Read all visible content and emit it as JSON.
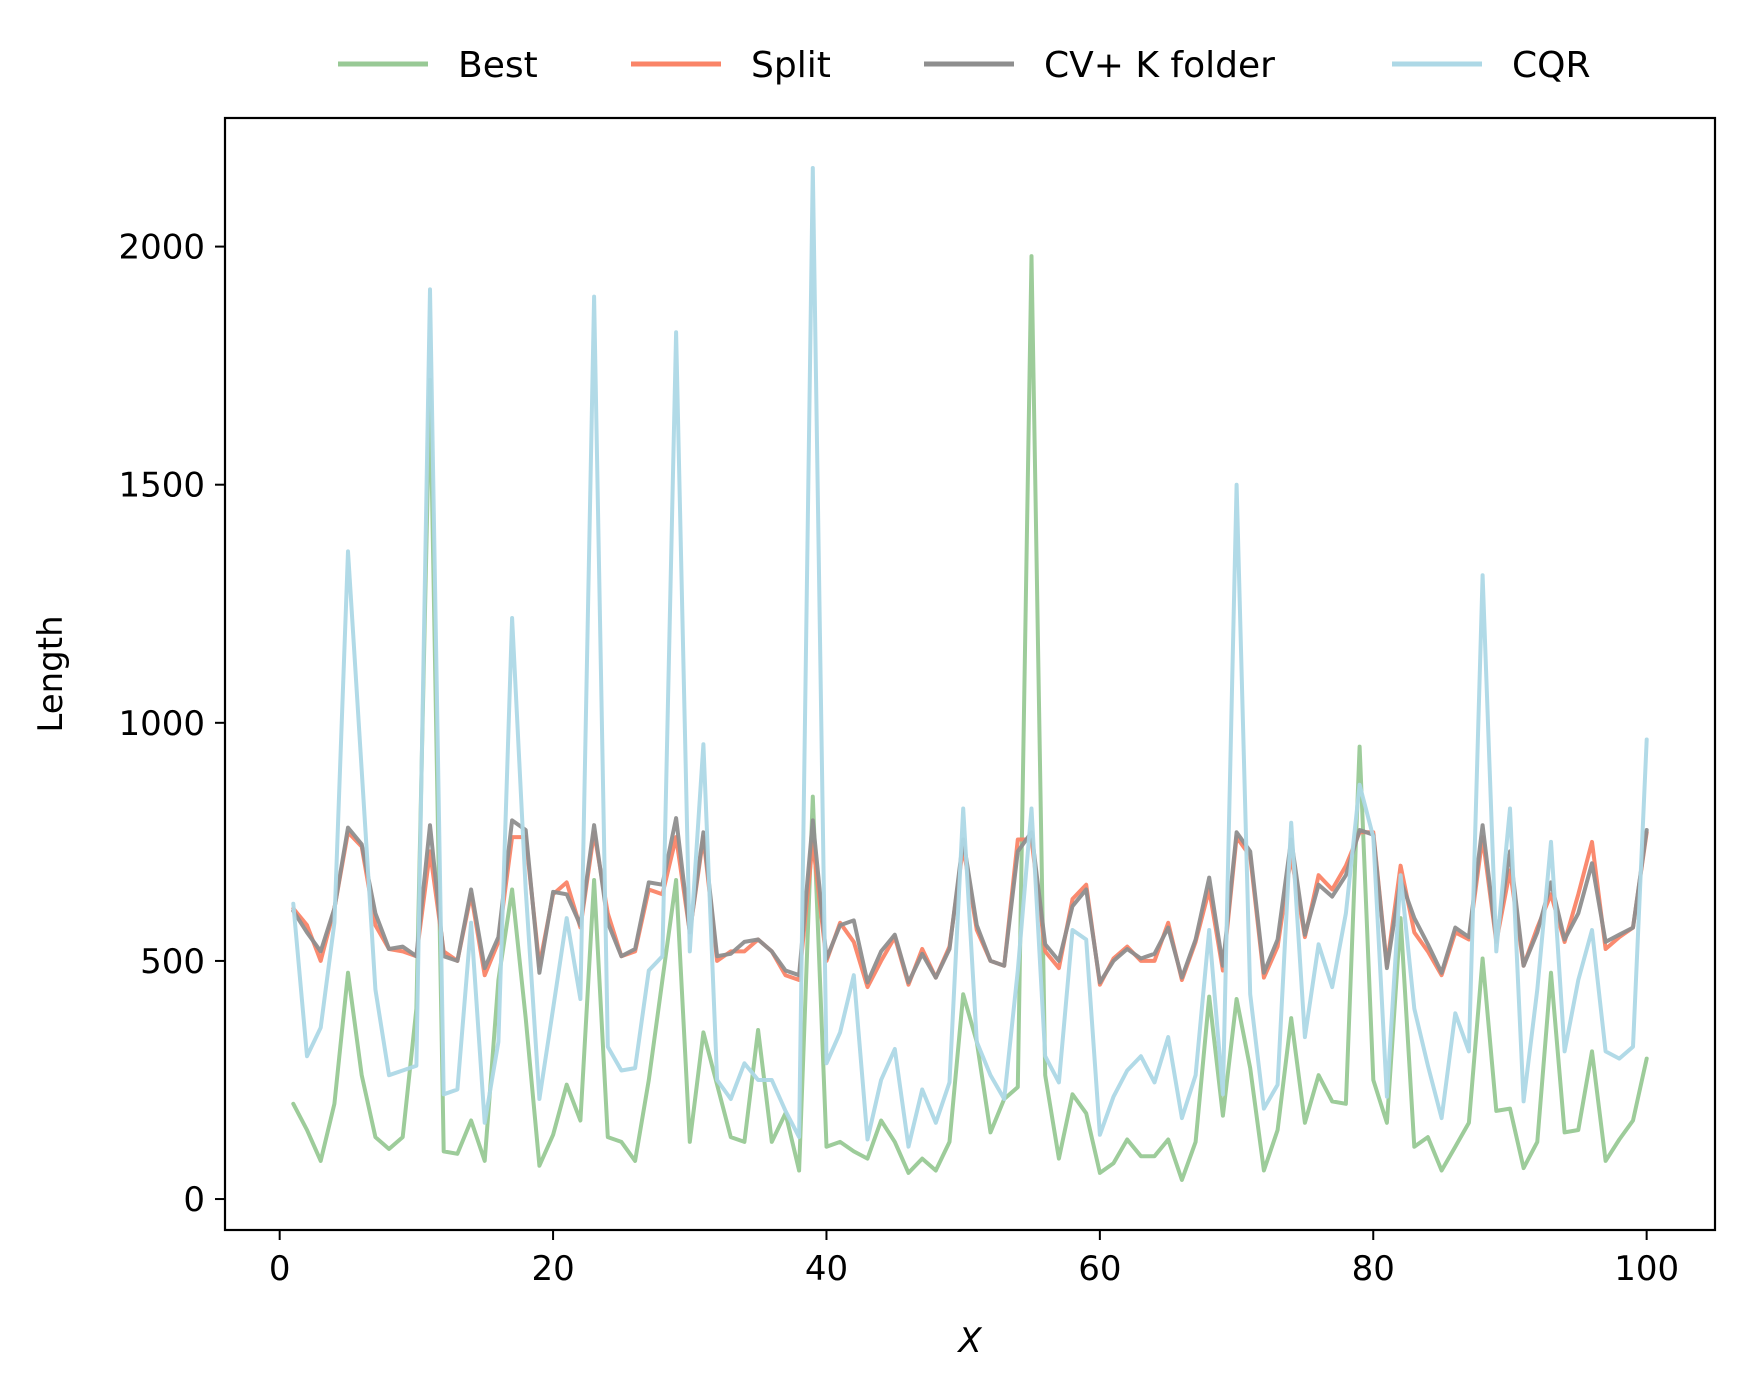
{
  "chart_data": {
    "type": "line",
    "title": "",
    "xlabel": "X",
    "ylabel": "Length",
    "xlim": [
      -4,
      105
    ],
    "ylim": [
      -65,
      2270
    ],
    "xticks": [
      0,
      20,
      40,
      60,
      80,
      100
    ],
    "yticks": [
      0,
      500,
      1000,
      1500,
      2000
    ],
    "legend_position": "top-center-outside",
    "grid": false,
    "x": [
      1,
      2,
      3,
      4,
      5,
      6,
      7,
      8,
      9,
      10,
      11,
      12,
      13,
      14,
      15,
      16,
      17,
      18,
      19,
      20,
      21,
      22,
      23,
      24,
      25,
      26,
      27,
      28,
      29,
      30,
      31,
      32,
      33,
      34,
      35,
      36,
      37,
      38,
      39,
      40,
      41,
      42,
      43,
      44,
      45,
      46,
      47,
      48,
      49,
      50,
      51,
      52,
      53,
      54,
      55,
      56,
      57,
      58,
      59,
      60,
      61,
      62,
      63,
      64,
      65,
      66,
      67,
      68,
      69,
      70,
      71,
      72,
      73,
      74,
      75,
      76,
      77,
      78,
      79,
      80,
      81,
      82,
      83,
      84,
      85,
      86,
      87,
      88,
      89,
      90,
      91,
      92,
      93,
      94,
      95,
      96,
      97,
      98,
      99,
      100
    ],
    "series": [
      {
        "name": "Best",
        "color": "#98c995",
        "values": [
          200,
          145,
          80,
          200,
          475,
          260,
          130,
          105,
          130,
          400,
          1720,
          100,
          95,
          165,
          80,
          460,
          650,
          380,
          70,
          135,
          240,
          165,
          670,
          130,
          120,
          80,
          250,
          460,
          670,
          120,
          350,
          240,
          130,
          120,
          355,
          120,
          180,
          60,
          845,
          110,
          120,
          100,
          85,
          165,
          120,
          55,
          85,
          60,
          120,
          430,
          330,
          140,
          210,
          235,
          1980,
          260,
          85,
          220,
          180,
          55,
          75,
          125,
          90,
          90,
          125,
          40,
          120,
          425,
          175,
          420,
          275,
          60,
          145,
          380,
          160,
          260,
          205,
          200,
          950,
          250,
          160,
          590,
          110,
          130,
          60,
          110,
          160,
          505,
          185,
          190,
          65,
          120,
          475,
          140,
          145,
          310,
          80,
          125,
          165,
          295
        ]
      },
      {
        "name": "Split",
        "color": "#fa8467",
        "values": [
          610,
          575,
          500,
          610,
          770,
          740,
          575,
          525,
          520,
          510,
          730,
          520,
          500,
          640,
          470,
          540,
          760,
          760,
          490,
          640,
          665,
          570,
          770,
          600,
          510,
          520,
          650,
          640,
          760,
          560,
          760,
          500,
          520,
          520,
          545,
          520,
          470,
          460,
          750,
          500,
          580,
          540,
          445,
          500,
          550,
          450,
          525,
          465,
          530,
          740,
          565,
          500,
          490,
          755,
          755,
          520,
          485,
          630,
          660,
          450,
          505,
          530,
          500,
          500,
          580,
          460,
          540,
          650,
          480,
          760,
          720,
          465,
          530,
          720,
          550,
          680,
          650,
          700,
          770,
          770,
          490,
          700,
          560,
          520,
          470,
          560,
          545,
          760,
          540,
          690,
          490,
          570,
          640,
          540,
          640,
          750,
          525,
          550,
          570,
          770
        ]
      },
      {
        "name": "CV+ K folder",
        "color": "#8e8e8e",
        "values": [
          605,
          560,
          520,
          610,
          780,
          745,
          600,
          525,
          530,
          510,
          785,
          510,
          500,
          650,
          485,
          550,
          795,
          775,
          475,
          645,
          640,
          575,
          785,
          580,
          510,
          525,
          665,
          660,
          800,
          560,
          770,
          510,
          515,
          540,
          545,
          520,
          480,
          470,
          795,
          505,
          575,
          585,
          455,
          520,
          555,
          455,
          515,
          465,
          525,
          755,
          575,
          500,
          490,
          730,
          770,
          535,
          500,
          615,
          650,
          455,
          500,
          525,
          505,
          515,
          570,
          465,
          545,
          675,
          490,
          770,
          730,
          475,
          545,
          755,
          555,
          660,
          635,
          680,
          775,
          765,
          485,
          670,
          590,
          535,
          475,
          570,
          550,
          785,
          545,
          730,
          490,
          560,
          665,
          545,
          600,
          705,
          540,
          555,
          570,
          775
        ]
      },
      {
        "name": "CQR",
        "color": "#add8e6",
        "values": [
          620,
          300,
          360,
          580,
          1360,
          900,
          440,
          260,
          270,
          280,
          1910,
          220,
          230,
          580,
          160,
          330,
          1220,
          650,
          210,
          400,
          590,
          420,
          1895,
          320,
          270,
          275,
          480,
          510,
          1820,
          520,
          955,
          250,
          210,
          285,
          250,
          250,
          185,
          130,
          2165,
          285,
          350,
          470,
          125,
          250,
          315,
          110,
          230,
          160,
          245,
          820,
          330,
          260,
          210,
          480,
          820,
          300,
          245,
          565,
          545,
          135,
          215,
          270,
          300,
          245,
          340,
          170,
          260,
          565,
          220,
          1500,
          430,
          190,
          240,
          790,
          340,
          535,
          445,
          600,
          870,
          760,
          215,
          680,
          400,
          280,
          170,
          390,
          310,
          1310,
          520,
          820,
          205,
          440,
          750,
          310,
          460,
          565,
          310,
          295,
          320,
          965
        ]
      }
    ]
  }
}
